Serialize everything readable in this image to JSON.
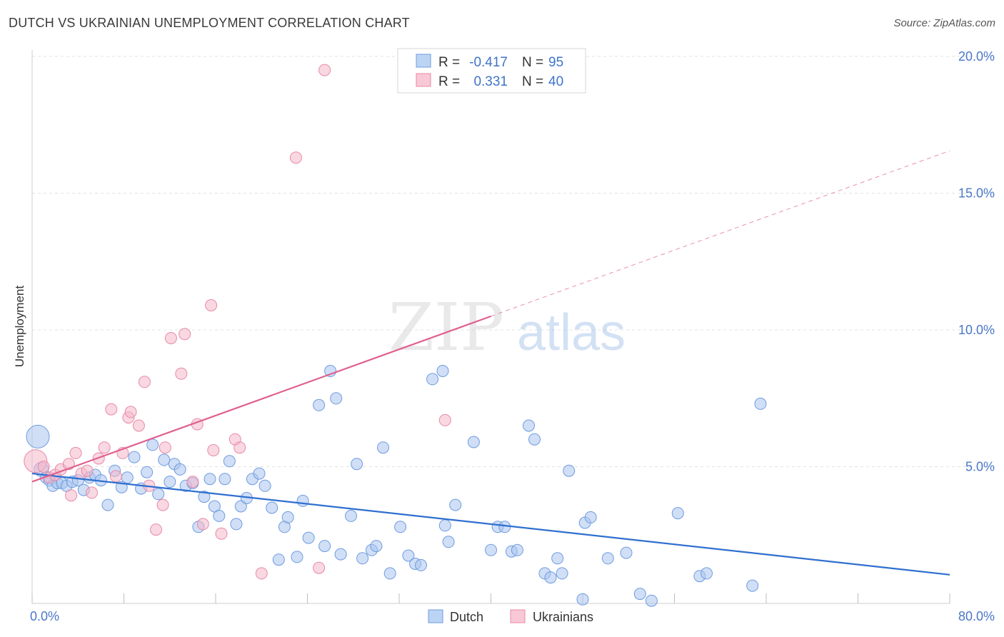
{
  "title": "DUTCH VS UKRAINIAN UNEMPLOYMENT CORRELATION CHART",
  "source": "Source: ZipAtlas.com",
  "watermark": {
    "zip": "ZIP",
    "atlas": "atlas"
  },
  "chart_data": {
    "type": "scatter",
    "xlabel": "",
    "ylabel": "Unemployment",
    "xlim": [
      0,
      80
    ],
    "ylim": [
      0,
      20.5
    ],
    "x_tick_labels": {
      "min": "0.0%",
      "max": "80.0%"
    },
    "y_ticks": [
      {
        "value": 5,
        "label": "5.0%"
      },
      {
        "value": 10,
        "label": "10.0%"
      },
      {
        "value": 15,
        "label": "15.0%"
      },
      {
        "value": 20,
        "label": "20.0%"
      }
    ],
    "grid": "horizontal dashed",
    "legend_placement": "top-center",
    "bottom_legend": [
      "Dutch",
      "Ukrainians"
    ],
    "stats": [
      {
        "r_label": "R =",
        "r": "-0.417",
        "n_label": "N =",
        "n": "95"
      },
      {
        "r_label": "R =",
        "r": "0.331",
        "n_label": "N =",
        "n": "40"
      }
    ],
    "series": [
      {
        "name": "Dutch",
        "color": "#a9c5ee",
        "stroke": "#6f9be0",
        "line_color": "#2f6fd0",
        "trend": {
          "x1": 0,
          "y1": 4.75,
          "x2": 80,
          "y2": 1.05,
          "solid_to": 80
        },
        "points": [
          [
            0.5,
            6.1,
            16
          ],
          [
            0.8,
            4.9,
            10
          ],
          [
            1.2,
            4.6,
            8
          ],
          [
            1.5,
            4.5,
            8
          ],
          [
            1.8,
            4.3,
            8
          ],
          [
            2.2,
            4.4,
            8
          ],
          [
            2.6,
            4.4,
            8
          ],
          [
            3.0,
            4.3,
            8
          ],
          [
            3.5,
            4.45,
            8
          ],
          [
            4.0,
            4.5,
            8
          ],
          [
            4.5,
            4.15,
            8
          ],
          [
            5.0,
            4.6,
            8
          ],
          [
            5.5,
            4.7,
            8
          ],
          [
            6.0,
            4.5,
            8
          ],
          [
            6.6,
            3.6,
            8
          ],
          [
            7.2,
            4.85,
            8
          ],
          [
            7.8,
            4.25,
            8
          ],
          [
            8.3,
            4.6,
            8
          ],
          [
            8.9,
            5.35,
            8
          ],
          [
            9.5,
            4.2,
            8
          ],
          [
            10.0,
            4.8,
            8
          ],
          [
            10.5,
            5.8,
            8
          ],
          [
            11.0,
            4.0,
            8
          ],
          [
            11.5,
            5.25,
            8
          ],
          [
            12.0,
            4.45,
            8
          ],
          [
            12.4,
            5.1,
            8
          ],
          [
            12.9,
            4.9,
            8
          ],
          [
            13.4,
            4.3,
            8
          ],
          [
            14.0,
            4.4,
            8
          ],
          [
            14.5,
            2.8,
            8
          ],
          [
            15.0,
            3.9,
            8
          ],
          [
            15.5,
            4.55,
            8
          ],
          [
            15.9,
            3.55,
            8
          ],
          [
            16.3,
            3.2,
            8
          ],
          [
            16.8,
            4.55,
            8
          ],
          [
            17.2,
            5.2,
            8
          ],
          [
            17.8,
            2.9,
            8
          ],
          [
            18.2,
            3.55,
            8
          ],
          [
            18.7,
            3.85,
            8
          ],
          [
            19.2,
            4.55,
            8
          ],
          [
            19.8,
            4.75,
            8
          ],
          [
            20.3,
            4.3,
            8
          ],
          [
            20.9,
            3.5,
            8
          ],
          [
            21.5,
            1.6,
            8
          ],
          [
            22.0,
            2.8,
            8
          ],
          [
            22.3,
            3.15,
            8
          ],
          [
            23.1,
            1.7,
            8
          ],
          [
            23.6,
            3.75,
            8
          ],
          [
            24.1,
            2.4,
            8
          ],
          [
            25.0,
            7.25,
            8
          ],
          [
            25.5,
            2.1,
            8
          ],
          [
            26.0,
            8.5,
            8
          ],
          [
            26.5,
            7.5,
            8
          ],
          [
            26.9,
            1.8,
            8
          ],
          [
            27.8,
            3.2,
            8
          ],
          [
            28.3,
            5.1,
            8
          ],
          [
            28.8,
            1.65,
            8
          ],
          [
            29.6,
            1.95,
            8
          ],
          [
            30.0,
            2.1,
            8
          ],
          [
            30.6,
            5.7,
            8
          ],
          [
            31.2,
            1.1,
            8
          ],
          [
            32.1,
            2.8,
            8
          ],
          [
            32.8,
            1.75,
            8
          ],
          [
            33.4,
            1.45,
            8
          ],
          [
            33.9,
            1.4,
            8
          ],
          [
            34.9,
            8.2,
            8
          ],
          [
            35.8,
            8.5,
            8
          ],
          [
            36.0,
            2.85,
            8
          ],
          [
            36.3,
            2.25,
            8
          ],
          [
            36.9,
            3.6,
            8
          ],
          [
            38.5,
            5.9,
            8
          ],
          [
            40.0,
            1.95,
            8
          ],
          [
            40.6,
            2.8,
            8
          ],
          [
            41.2,
            2.8,
            8
          ],
          [
            41.8,
            1.9,
            8
          ],
          [
            42.3,
            1.95,
            8
          ],
          [
            43.3,
            6.5,
            8
          ],
          [
            43.8,
            6.0,
            8
          ],
          [
            44.7,
            1.1,
            8
          ],
          [
            45.2,
            0.95,
            8
          ],
          [
            45.8,
            1.65,
            8
          ],
          [
            46.2,
            1.1,
            8
          ],
          [
            46.8,
            4.85,
            8
          ],
          [
            48.0,
            0.15,
            8
          ],
          [
            48.2,
            2.95,
            8
          ],
          [
            48.7,
            3.15,
            8
          ],
          [
            50.2,
            1.65,
            8
          ],
          [
            51.8,
            1.85,
            8
          ],
          [
            53.0,
            0.35,
            8
          ],
          [
            54.0,
            0.1,
            8
          ],
          [
            56.3,
            3.3,
            8
          ],
          [
            58.2,
            1.0,
            8
          ],
          [
            58.8,
            1.1,
            8
          ],
          [
            62.8,
            0.65,
            8
          ],
          [
            63.5,
            7.3,
            8
          ]
        ]
      },
      {
        "name": "Ukrainians",
        "color": "#f4b8cb",
        "stroke": "#e889a8",
        "line_color": "#e06090",
        "trend": {
          "x1": 0,
          "y1": 4.45,
          "x2": 80,
          "y2": 16.55,
          "solid_to": 40
        },
        "points": [
          [
            0.3,
            5.2,
            16
          ],
          [
            1.0,
            5.0,
            8
          ],
          [
            1.5,
            4.6,
            8
          ],
          [
            2.0,
            4.7,
            8
          ],
          [
            2.5,
            4.9,
            8
          ],
          [
            3.2,
            5.1,
            8
          ],
          [
            3.4,
            3.95,
            8
          ],
          [
            3.8,
            5.5,
            8
          ],
          [
            4.3,
            4.75,
            8
          ],
          [
            4.8,
            4.85,
            8
          ],
          [
            5.2,
            4.05,
            8
          ],
          [
            5.8,
            5.3,
            8
          ],
          [
            6.3,
            5.7,
            8
          ],
          [
            6.9,
            7.1,
            8
          ],
          [
            7.3,
            4.65,
            8
          ],
          [
            7.9,
            5.5,
            8
          ],
          [
            8.4,
            6.8,
            8
          ],
          [
            8.6,
            7.0,
            8
          ],
          [
            9.3,
            6.5,
            8
          ],
          [
            9.8,
            8.1,
            8
          ],
          [
            10.2,
            4.3,
            8
          ],
          [
            10.8,
            2.7,
            8
          ],
          [
            11.4,
            3.6,
            8
          ],
          [
            11.6,
            5.7,
            8
          ],
          [
            12.1,
            9.7,
            8
          ],
          [
            13.0,
            8.4,
            8
          ],
          [
            13.3,
            9.85,
            8
          ],
          [
            14.0,
            4.45,
            8
          ],
          [
            14.4,
            6.55,
            8
          ],
          [
            14.9,
            2.9,
            8
          ],
          [
            15.6,
            10.9,
            8
          ],
          [
            15.8,
            5.6,
            8
          ],
          [
            16.5,
            2.55,
            8
          ],
          [
            17.7,
            6.0,
            8
          ],
          [
            18.1,
            5.7,
            8
          ],
          [
            20.0,
            1.1,
            8
          ],
          [
            23.0,
            16.3,
            8
          ],
          [
            25.0,
            1.3,
            8
          ],
          [
            25.5,
            19.5,
            8
          ],
          [
            36.0,
            6.7,
            8
          ]
        ]
      }
    ]
  }
}
